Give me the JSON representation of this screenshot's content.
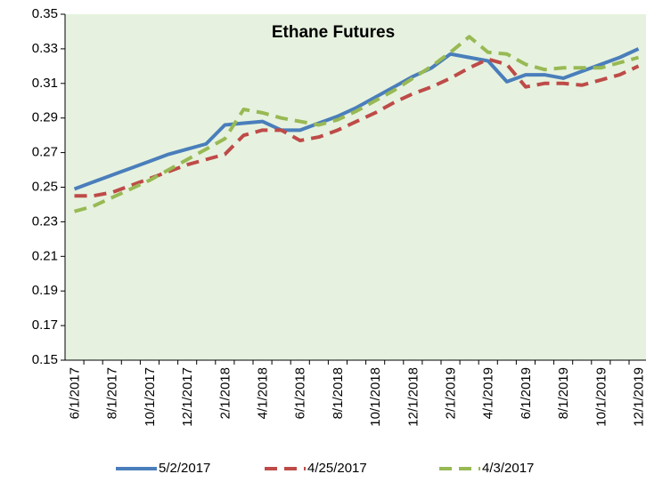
{
  "chart_data": {
    "type": "line",
    "title": "Ethane Futures",
    "categories": [
      "6/1/2017",
      null,
      "8/1/2017",
      null,
      "10/1/2017",
      null,
      "12/1/2017",
      null,
      "2/1/2018",
      null,
      "4/1/2018",
      null,
      "6/1/2018",
      null,
      "8/1/2018",
      null,
      "10/1/2018",
      null,
      "12/1/2018",
      null,
      "2/1/2019",
      null,
      "4/1/2019",
      null,
      "6/1/2019",
      null,
      "8/1/2019",
      null,
      "10/1/2019",
      null,
      "12/1/2019"
    ],
    "series": [
      {
        "name": "5/2/2017",
        "color": "#4a7ebb",
        "dashed": false,
        "values": [
          0.249,
          0.253,
          0.257,
          0.261,
          0.265,
          0.269,
          0.272,
          0.275,
          0.286,
          0.287,
          0.288,
          0.283,
          0.283,
          0.287,
          0.291,
          0.296,
          0.302,
          0.308,
          0.314,
          0.319,
          0.327,
          0.325,
          0.323,
          0.311,
          0.315,
          0.315,
          0.313,
          0.317,
          0.321,
          0.325,
          0.33
        ]
      },
      {
        "name": "4/25/2017",
        "color": "#be4b48",
        "dashed": true,
        "values": [
          0.245,
          0.245,
          0.247,
          0.251,
          0.255,
          0.259,
          0.263,
          0.266,
          0.269,
          0.28,
          0.283,
          0.283,
          0.277,
          0.279,
          0.283,
          0.288,
          0.293,
          0.299,
          0.304,
          0.308,
          0.313,
          0.319,
          0.324,
          0.321,
          0.308,
          0.31,
          0.31,
          0.309,
          0.312,
          0.315,
          0.32
        ]
      },
      {
        "name": "4/3/2017",
        "color": "#98b954",
        "dashed": true,
        "values": [
          0.236,
          0.239,
          0.244,
          0.249,
          0.254,
          0.26,
          0.266,
          0.272,
          0.278,
          0.295,
          0.293,
          0.29,
          0.288,
          0.286,
          0.289,
          0.294,
          0.3,
          0.306,
          0.313,
          0.32,
          0.328,
          0.337,
          0.328,
          0.327,
          0.321,
          0.318,
          0.319,
          0.319,
          0.319,
          0.322,
          0.325
        ]
      }
    ],
    "ylim": [
      0.15,
      0.35
    ],
    "yticks": [
      0.15,
      0.17,
      0.19,
      0.21,
      0.23,
      0.25,
      0.27,
      0.29,
      0.31,
      0.33,
      0.35
    ],
    "grid": false,
    "legend": "bottom",
    "plot_background": "#e6f2df"
  }
}
